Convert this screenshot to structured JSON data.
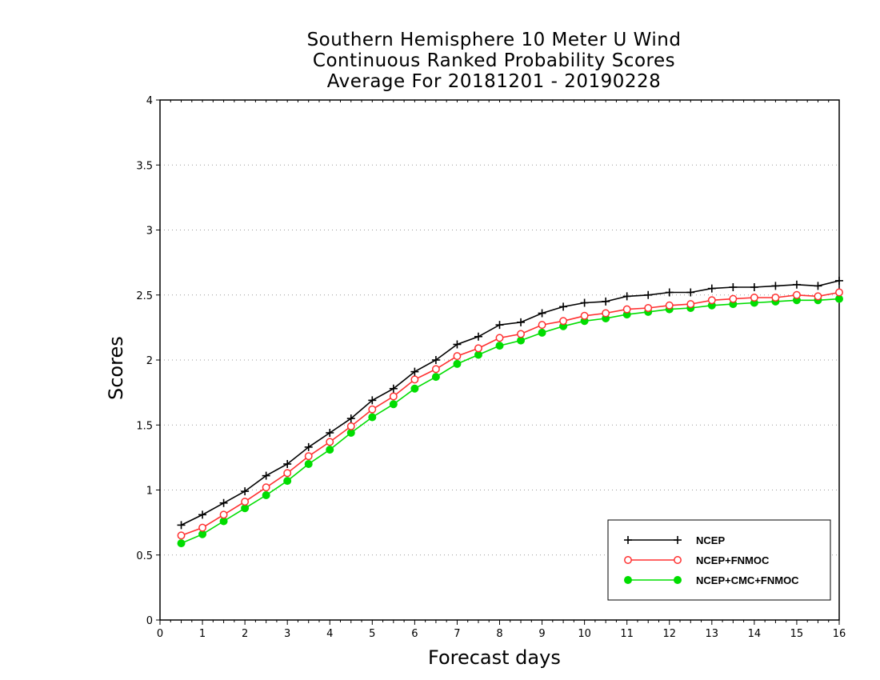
{
  "chart_data": {
    "type": "line",
    "title": [
      "Southern Hemisphere 10 Meter U Wind",
      "Continuous Ranked Probability Scores",
      "Average For 20181201 - 20190228"
    ],
    "xlabel": "Forecast days",
    "ylabel": "Scores",
    "xlim": [
      0,
      16
    ],
    "ylim": [
      0,
      4
    ],
    "xticks": [
      "0",
      "1",
      "2",
      "3",
      "4",
      "5",
      "6",
      "7",
      "8",
      "9",
      "10",
      "11",
      "12",
      "13",
      "14",
      "15",
      "16"
    ],
    "yticks": [
      "0",
      "0.5",
      "1",
      "1.5",
      "2",
      "2.5",
      "3",
      "3.5",
      "4"
    ],
    "grid": "horizontal dotted",
    "legend_position": "bottom-right",
    "x": [
      0.5,
      1,
      1.5,
      2,
      2.5,
      3,
      3.5,
      4,
      4.5,
      5,
      5.5,
      6,
      6.5,
      7,
      7.5,
      8,
      8.5,
      9,
      9.5,
      10,
      10.5,
      11,
      11.5,
      12,
      12.5,
      13,
      13.5,
      14,
      14.5,
      15,
      15.5,
      16
    ],
    "series": [
      {
        "name": "NCEP",
        "color": "#000000",
        "marker": "plus",
        "values": [
          0.73,
          0.81,
          0.9,
          0.99,
          1.11,
          1.2,
          1.33,
          1.44,
          1.55,
          1.69,
          1.78,
          1.91,
          2.0,
          2.12,
          2.18,
          2.27,
          2.29,
          2.36,
          2.41,
          2.44,
          2.45,
          2.49,
          2.5,
          2.52,
          2.52,
          2.55,
          2.56,
          2.56,
          2.57,
          2.58,
          2.57,
          2.61
        ]
      },
      {
        "name": "NCEP+FNMOC",
        "color": "#ff3030",
        "marker": "open-circle",
        "values": [
          0.65,
          0.71,
          0.81,
          0.91,
          1.02,
          1.13,
          1.26,
          1.37,
          1.49,
          1.62,
          1.72,
          1.85,
          1.93,
          2.03,
          2.09,
          2.17,
          2.2,
          2.27,
          2.3,
          2.34,
          2.36,
          2.39,
          2.4,
          2.42,
          2.43,
          2.46,
          2.47,
          2.48,
          2.48,
          2.5,
          2.49,
          2.52
        ]
      },
      {
        "name": "NCEP+CMC+FNMOC",
        "color": "#00dd00",
        "marker": "filled-circle",
        "values": [
          0.59,
          0.66,
          0.76,
          0.86,
          0.96,
          1.07,
          1.2,
          1.31,
          1.44,
          1.56,
          1.66,
          1.78,
          1.87,
          1.97,
          2.04,
          2.11,
          2.15,
          2.21,
          2.26,
          2.3,
          2.32,
          2.35,
          2.37,
          2.39,
          2.4,
          2.42,
          2.43,
          2.44,
          2.45,
          2.46,
          2.46,
          2.47
        ]
      }
    ]
  }
}
